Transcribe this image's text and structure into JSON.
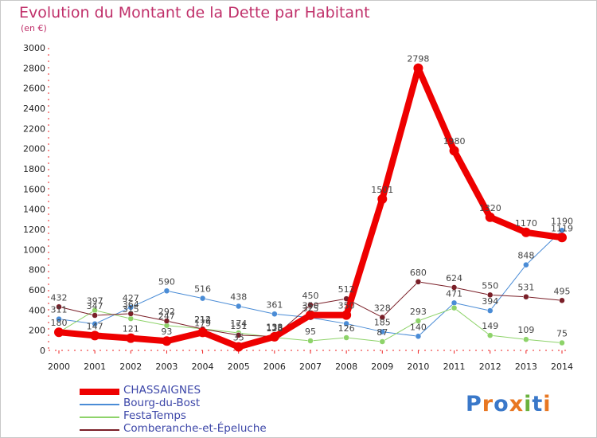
{
  "title": "Evolution du Montant de la Dette par Habitant",
  "subtitle": "(en €)",
  "logo": {
    "text": "Proxiti",
    "colors": [
      "#3a78c9",
      "#e87722",
      "#3a78c9",
      "#e87722",
      "#6ab23e",
      "#3a78c9",
      "#e87722"
    ]
  },
  "chart_data": {
    "type": "line",
    "x": [
      "2000",
      "2001",
      "2002",
      "2003",
      "2004",
      "2005",
      "2006",
      "2007",
      "2008",
      "2009",
      "2010",
      "2011",
      "2012",
      "2013",
      "2014"
    ],
    "ylim": [
      0,
      3000
    ],
    "yticks": [
      "0",
      "200",
      "400",
      "600",
      "800",
      "1000",
      "1200",
      "1400",
      "1600",
      "1800",
      "2000",
      "2200",
      "2400",
      "2600",
      "2800",
      "3000"
    ],
    "grid": false,
    "series": [
      {
        "name": "CHASSAIGNES",
        "color": "#ee0000",
        "width": 8,
        "values": [
          180,
          147,
          121,
          93,
          179,
          35,
          135,
          350,
          350,
          1501,
          2798,
          1980,
          1320,
          1170,
          1119
        ],
        "labels": [
          "180",
          "147",
          "121",
          "93",
          "179",
          "35",
          "135",
          "350",
          "350",
          "1501",
          "2798",
          "1980",
          "1320",
          "1170",
          "1119"
        ]
      },
      {
        "name": "Bourg-du-Bost",
        "color": "#4a8cd6",
        "width": 1,
        "values": [
          311,
          263,
          427,
          590,
          516,
          438,
          361,
          325,
          265,
          185,
          140,
          471,
          394,
          848,
          1190
        ],
        "labels": [
          "311",
          "",
          "427",
          "590",
          "516",
          "438",
          "361",
          "325",
          "",
          "185",
          "140",
          "471",
          "394",
          "848",
          "1190"
        ]
      },
      {
        "name": "FestaTemps",
        "color": "#8ed36a",
        "width": 1,
        "values": [
          180,
          397,
          315,
          247,
          214,
          174,
          128,
          95,
          126,
          87,
          293,
          421,
          149,
          109,
          75
        ],
        "labels": [
          "",
          "397",
          "315",
          "247",
          "214",
          "174",
          "128",
          "95",
          "126",
          "87",
          "293",
          "",
          "149",
          "109",
          "75"
        ]
      },
      {
        "name": "Comberanche-et-Épeluche",
        "color": "#7a1f28",
        "width": 1,
        "values": [
          432,
          347,
          364,
          292,
          212,
          151,
          138,
          450,
          512,
          328,
          680,
          624,
          550,
          531,
          495
        ],
        "labels": [
          "432",
          "347",
          "364",
          "292",
          "212",
          "151",
          "138",
          "450",
          "512",
          "328",
          "680",
          "624",
          "550",
          "531",
          "495"
        ]
      }
    ]
  }
}
